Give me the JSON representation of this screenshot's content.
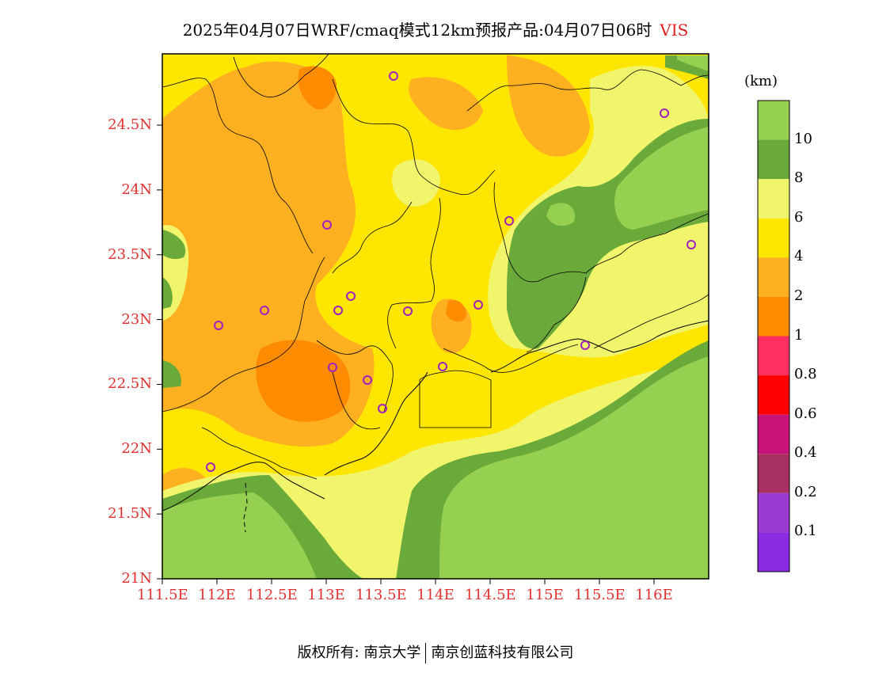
{
  "header": {
    "title": "2025年04月07日WRF/cmaq模式12km预报产品:04月07日06时",
    "variable": "VIS"
  },
  "map": {
    "lat_ticks": [
      "24.5N",
      "24N",
      "23.5N",
      "23N",
      "22.5N",
      "22N",
      "21.5N",
      "21N"
    ],
    "lon_ticks": [
      "111.5E",
      "112E",
      "112.5E",
      "113E",
      "113.5E",
      "114E",
      "114.5E",
      "115E",
      "115.5E",
      "116E"
    ],
    "lat_range": [
      21,
      25.05
    ],
    "lon_range": [
      111.5,
      116.5
    ],
    "station_marker_color": "#a020c0"
  },
  "colorbar": {
    "unit": "(km)",
    "labels": [
      "10",
      "8",
      "6",
      "4",
      "2",
      "1",
      "0.8",
      "0.6",
      "0.4",
      "0.2",
      "0.1"
    ],
    "colors": [
      "#96d050",
      "#6aaa3a",
      "#f0f56c",
      "#ffe600",
      "#ffb020",
      "#ff8c00",
      "#ff3060",
      "#ff0000",
      "#c8147a",
      "#a83060",
      "#9a3ad0",
      "#8a2be2"
    ]
  },
  "footer": {
    "left": "版权所有: 南京大学",
    "right": "南京创蓝科技有限公司"
  }
}
